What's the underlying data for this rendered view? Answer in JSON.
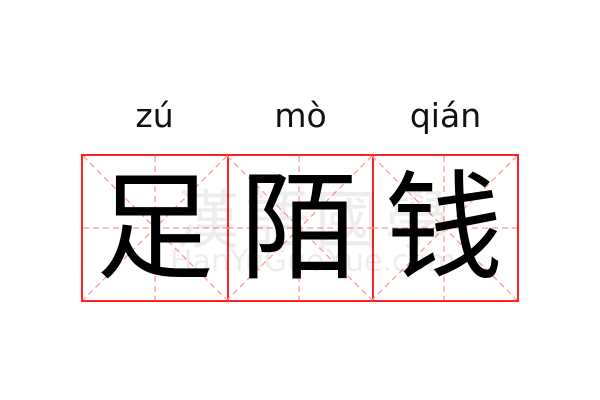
{
  "words": [
    {
      "pinyin": "zú",
      "character": "足"
    },
    {
      "pinyin": "mò",
      "character": "陌"
    },
    {
      "pinyin": "qián",
      "character": "钱"
    }
  ],
  "watermark": {
    "chinese": "漢語國學",
    "latin": "HanYuGuoXue.com"
  },
  "colors": {
    "grid_border": "#ff2222",
    "guide_lines": "#ff9999",
    "text": "#000000"
  }
}
